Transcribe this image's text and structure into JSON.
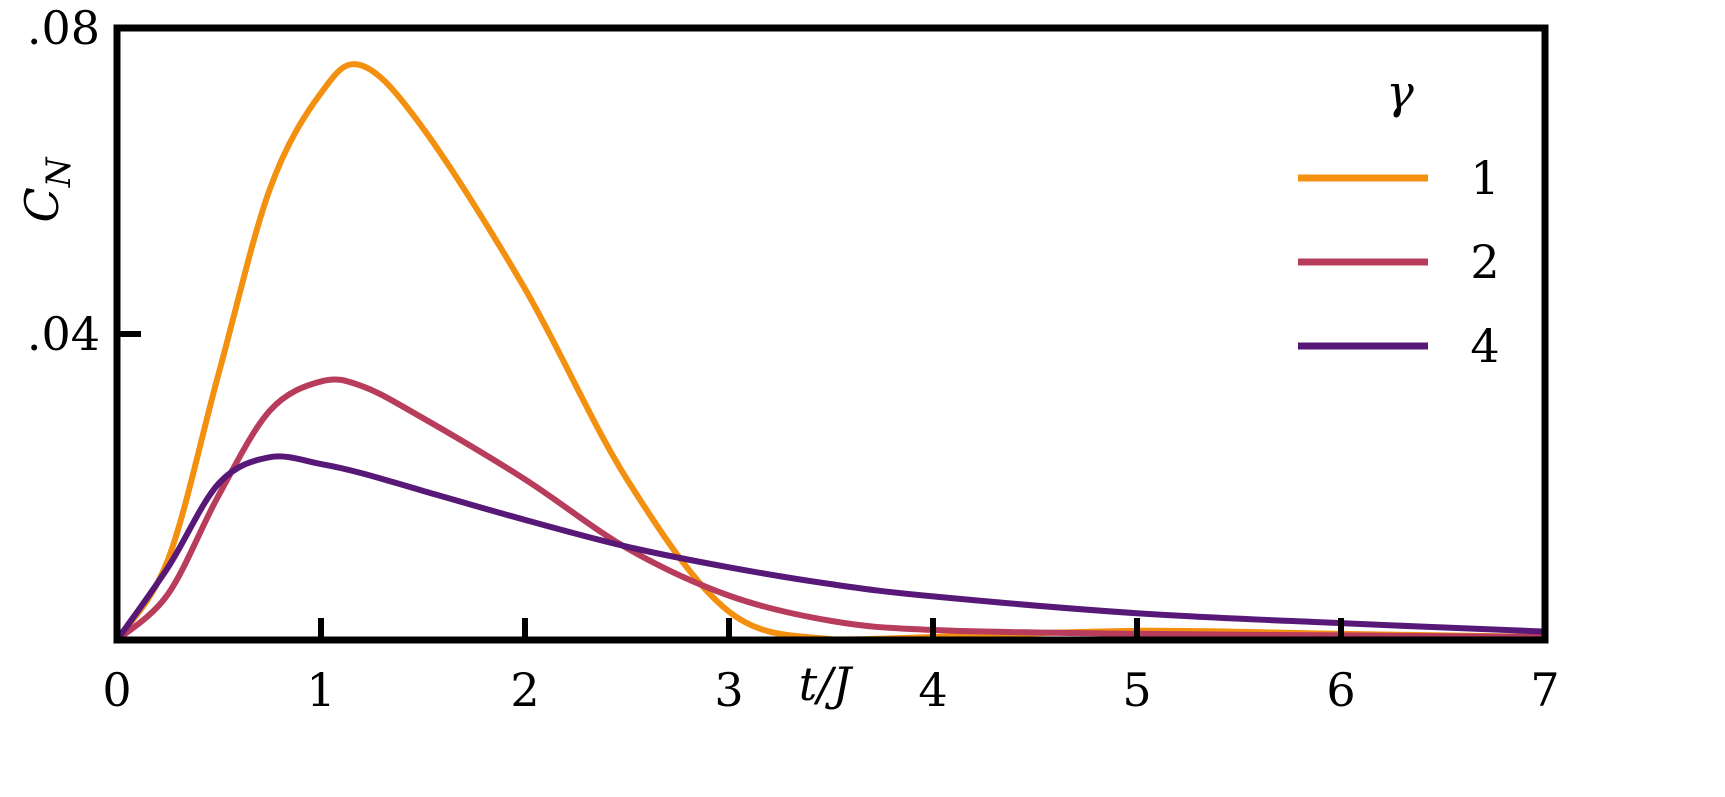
{
  "chart_data": {
    "type": "line",
    "title": "",
    "xlabel": "t/J",
    "ylabel": "C_N",
    "xlim": [
      0,
      7
    ],
    "ylim": [
      0,
      0.08
    ],
    "x_ticks": [
      0,
      1,
      2,
      3,
      4,
      5,
      6,
      7
    ],
    "x_tick_labels": [
      "0",
      "1",
      "2",
      "3",
      "4",
      "5",
      "6",
      "7"
    ],
    "y_ticks": [
      0.04,
      0.08
    ],
    "y_tick_labels": [
      ".04",
      ".08"
    ],
    "grid": false,
    "legend": {
      "title": "γ",
      "placement": "top-right"
    },
    "x": [
      0,
      0.25,
      0.5,
      0.75,
      1,
      1.2,
      1.5,
      2,
      2.5,
      3,
      3.5,
      4,
      5,
      6,
      7
    ],
    "series": [
      {
        "name": "1",
        "color": "#F4900F",
        "values": [
          0,
          0.0105,
          0.035,
          0.059,
          0.0715,
          0.0751,
          0.0669,
          0.0459,
          0.021,
          0.0037,
          0.0001,
          0.0004,
          0.0012,
          0.0008,
          0.0004
        ]
      },
      {
        "name": "2",
        "color": "#B83C5C",
        "values": [
          0,
          0.006,
          0.019,
          0.03,
          0.0338,
          0.0332,
          0.029,
          0.021,
          0.012,
          0.0058,
          0.0025,
          0.0013,
          0.0008,
          0.0006,
          0.0004
        ]
      },
      {
        "name": "4",
        "color": "#571877",
        "values": [
          0,
          0.0095,
          0.0205,
          0.0239,
          0.023,
          0.0218,
          0.0195,
          0.0157,
          0.0122,
          0.0095,
          0.0073,
          0.0057,
          0.0035,
          0.0022,
          0.0011
        ]
      }
    ]
  }
}
